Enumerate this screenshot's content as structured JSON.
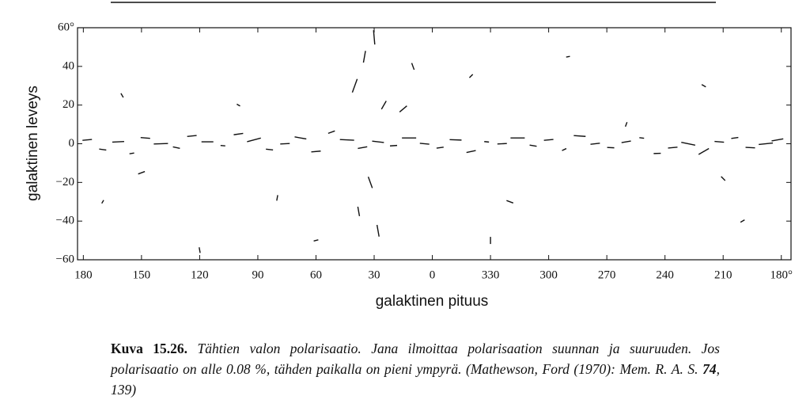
{
  "chart_data": {
    "type": "vector",
    "xlabel": "galaktinen pituus",
    "ylabel": "galaktinen leveys",
    "xlim": [
      183,
      -185
    ],
    "ylim": [
      60,
      -60
    ],
    "xticks": [
      180,
      150,
      120,
      90,
      60,
      30,
      0,
      {
        "value": -30,
        "label": "330"
      },
      {
        "value": -60,
        "label": "300"
      },
      {
        "value": -90,
        "label": "270"
      },
      {
        "value": -120,
        "label": "240"
      },
      {
        "value": -150,
        "label": "210"
      },
      {
        "value": -180,
        "label": "180°"
      }
    ],
    "yticks": [
      {
        "value": 60,
        "label": "60°"
      },
      40,
      20,
      0,
      {
        "value": -20,
        "label": "−20"
      },
      {
        "value": -40,
        "label": "−40"
      },
      {
        "value": -60,
        "label": "−60"
      }
    ],
    "color": "#111111",
    "x": [
      178,
      170,
      162,
      155,
      148,
      140,
      132,
      124,
      116,
      108,
      100,
      92,
      84,
      76,
      68,
      60,
      52,
      44,
      36,
      28,
      20,
      12,
      4,
      -4,
      -12,
      -20,
      -28,
      -36,
      -44,
      -52,
      -60,
      -68,
      -76,
      -84,
      -92,
      -100,
      -108,
      -116,
      -124,
      -132,
      -140,
      -148,
      -156,
      -164,
      -172,
      -178,
      40,
      35,
      30,
      25,
      32,
      38,
      28,
      15,
      10,
      160,
      150,
      100,
      80,
      -20,
      -40,
      -70,
      -100,
      -150,
      -160,
      170,
      120,
      60,
      -30,
      -140
    ],
    "y": [
      2,
      -3,
      1,
      -5,
      3,
      0,
      -2,
      4,
      1,
      -1,
      5,
      2,
      -3,
      0,
      3,
      -4,
      6,
      2,
      -2,
      1,
      -1,
      3,
      0,
      -2,
      2,
      -4,
      1,
      0,
      3,
      -1,
      2,
      -3,
      4,
      0,
      -2,
      1,
      3,
      -5,
      -2,
      0,
      -4,
      1,
      3,
      -2,
      0,
      2,
      30,
      45,
      55,
      20,
      -20,
      -35,
      -45,
      18,
      40,
      25,
      -15,
      20,
      -28,
      35,
      -30,
      45,
      10,
      -18,
      -40,
      -30,
      -55,
      -50,
      -50,
      30
    ],
    "angle": [
      5,
      -8,
      3,
      10,
      -5,
      2,
      -12,
      6,
      0,
      -4,
      8,
      15,
      -6,
      3,
      -10,
      5,
      20,
      -3,
      10,
      -7,
      4,
      0,
      -5,
      8,
      -2,
      12,
      -6,
      3,
      0,
      -10,
      5,
      25,
      -4,
      7,
      -3,
      10,
      -8,
      2,
      5,
      -12,
      30,
      -5,
      8,
      -3,
      6,
      10,
      70,
      80,
      95,
      60,
      -70,
      -80,
      100,
      40,
      110,
      -60,
      20,
      -30,
      80,
      45,
      -20,
      10,
      70,
      -45,
      30,
      60,
      -80,
      15,
      90,
      -30
    ],
    "length": [
      2,
      1.5,
      2.5,
      1,
      2,
      3,
      1.5,
      2,
      2.5,
      1,
      2,
      3,
      1.5,
      2,
      2.5,
      2,
      1.5,
      3,
      2,
      2.5,
      1.5,
      3,
      2,
      1.5,
      2.5,
      2,
      1,
      2,
      3,
      1.5,
      2,
      1,
      2.5,
      2,
      1.5,
      2,
      1,
      1.5,
      2,
      3,
      2.5,
      2,
      1.5,
      2,
      3,
      2.5,
      3,
      2.5,
      3,
      2,
      2.5,
      2,
      2.5,
      2,
      1.5,
      1,
      1.5,
      0.8,
      1.2,
      1,
      1.5,
      0.8,
      1,
      1.2,
      1,
      0.8,
      1.2,
      1,
      1.5,
      1
    ]
  },
  "caption": {
    "label": "Kuva 15.26.",
    "text": "Tähtien valon polarisaatio. Jana ilmoittaa polarisaation suunnan ja suuruuden. Jos polarisaatio on alle 0.08 %, tähden paikalla on pieni ympyrä. (Mathewson, Ford (1970): Mem. R. A. S. ",
    "volume": "74",
    "pages": ", 139)"
  }
}
